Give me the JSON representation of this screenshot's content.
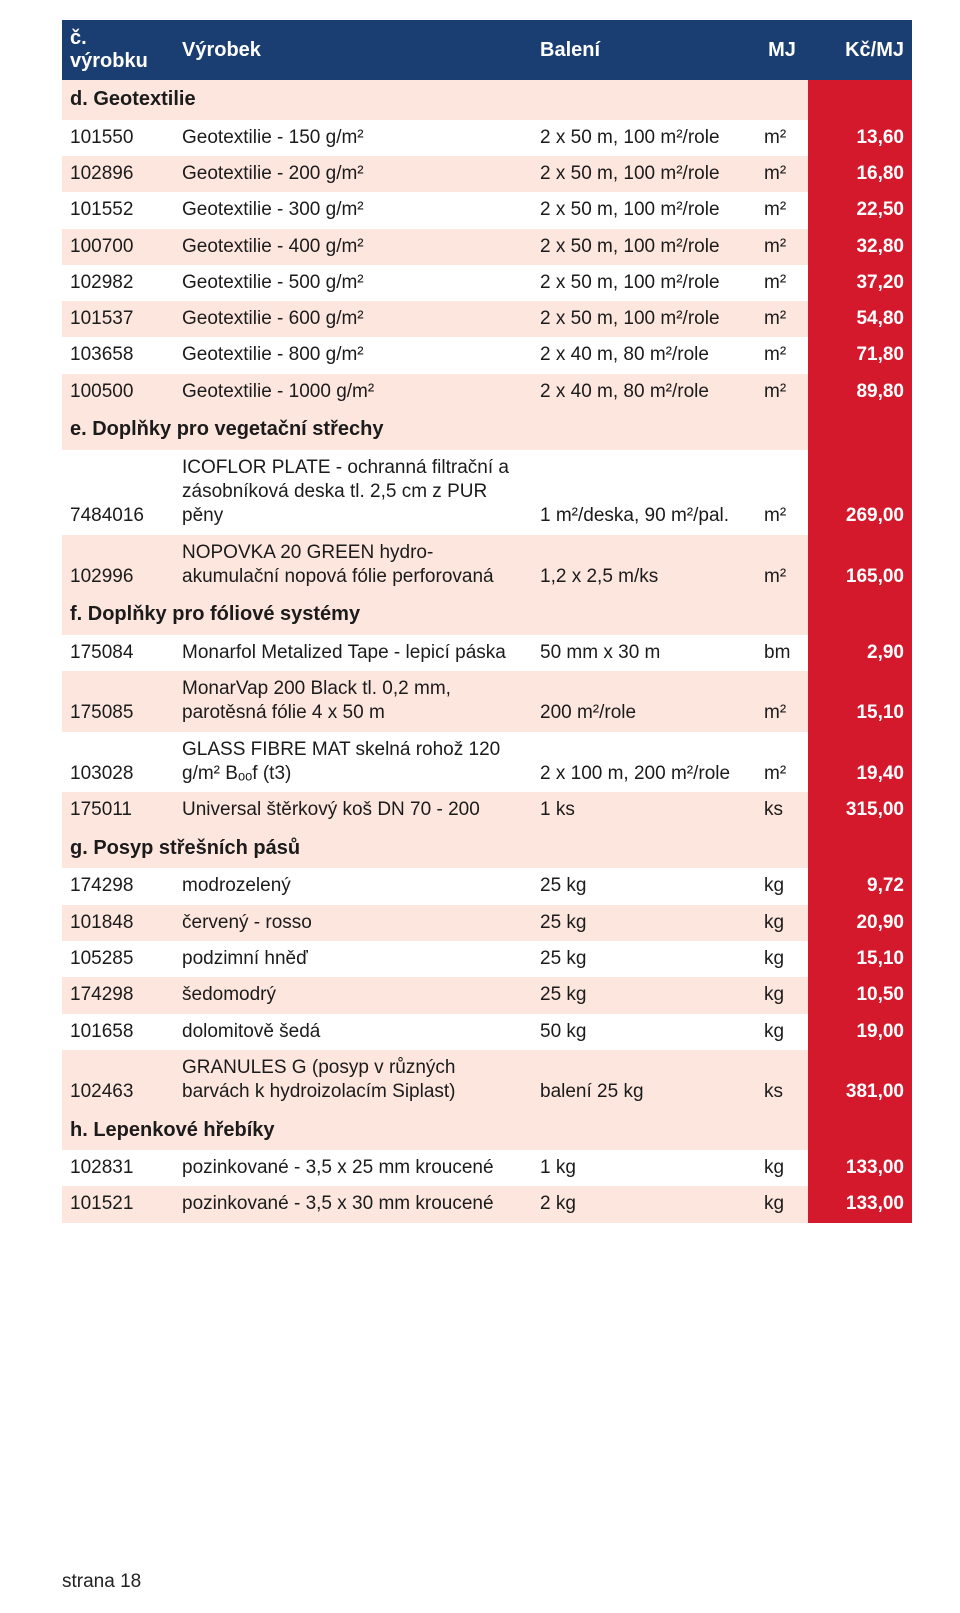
{
  "header": {
    "code": "č. výrobku",
    "product": "Výrobek",
    "package": "Balení",
    "mj": "MJ",
    "price": "Kč/MJ"
  },
  "sections": [
    {
      "title": "d. Geotextilie",
      "rows": [
        {
          "code": "101550",
          "desc": "Geotextilie - 150 g/m²",
          "pack": "2 x 50 m, 100 m²/role",
          "mj": "m²",
          "price": "13,60"
        },
        {
          "code": "102896",
          "desc": "Geotextilie - 200 g/m²",
          "pack": "2 x 50 m, 100 m²/role",
          "mj": "m²",
          "price": "16,80"
        },
        {
          "code": "101552",
          "desc": "Geotextilie - 300 g/m²",
          "pack": "2 x 50 m, 100 m²/role",
          "mj": "m²",
          "price": "22,50"
        },
        {
          "code": "100700",
          "desc": "Geotextilie - 400 g/m²",
          "pack": "2 x 50 m, 100 m²/role",
          "mj": "m²",
          "price": "32,80"
        },
        {
          "code": "102982",
          "desc": "Geotextilie - 500 g/m²",
          "pack": "2 x 50 m, 100 m²/role",
          "mj": "m²",
          "price": "37,20"
        },
        {
          "code": "101537",
          "desc": "Geotextilie - 600 g/m²",
          "pack": "2 x 50 m, 100 m²/role",
          "mj": "m²",
          "price": "54,80"
        },
        {
          "code": "103658",
          "desc": "Geotextilie - 800 g/m²",
          "pack": "2 x 40 m, 80 m²/role",
          "mj": "m²",
          "price": "71,80"
        },
        {
          "code": "100500",
          "desc": "Geotextilie - 1000 g/m²",
          "pack": "2 x 40 m, 80 m²/role",
          "mj": "m²",
          "price": "89,80"
        }
      ]
    },
    {
      "title": "e. Doplňky pro vegetační střechy",
      "rows": [
        {
          "code": "7484016",
          "desc": "ICOFLOR PLATE - ochranná filtrační a zásobníková deska tl. 2,5 cm z PUR pěny",
          "pack": "1 m²/deska, 90 m²/pal.",
          "mj": "m²",
          "price": "269,00"
        },
        {
          "code": "102996",
          "desc": "NOPOVKA 20 GREEN hydro-akumulační nopová fólie perforovaná",
          "pack": "1,2 x 2,5 m/ks",
          "mj": "m²",
          "price": "165,00"
        }
      ]
    },
    {
      "title": "f. Doplňky pro fóliové systémy",
      "rows": [
        {
          "code": "175084",
          "desc": "Monarfol Metalized Tape - lepicí páska",
          "pack": "50 mm x 30 m",
          "mj": "bm",
          "price": "2,90"
        },
        {
          "code": "175085",
          "desc": "MonarVap 200 Black tl. 0,2 mm, parotěsná fólie 4 x 50 m",
          "pack": "200 m²/role",
          "mj": "m²",
          "price": "15,10"
        },
        {
          "code": "103028",
          "desc": "GLASS FIBRE MAT skelná rohož 120 g/m² Bₒₒf (t3)",
          "pack": "2 x 100 m, 200 m²/role",
          "mj": "m²",
          "price": "19,40"
        },
        {
          "code": "175011",
          "desc": "Universal štěrkový koš DN 70 - 200",
          "pack": "1 ks",
          "mj": "ks",
          "price": "315,00"
        }
      ]
    },
    {
      "title": "g. Posyp střešních pásů",
      "rows": [
        {
          "code": "174298",
          "desc": "modrozelený",
          "pack": "25 kg",
          "mj": "kg",
          "price": "9,72"
        },
        {
          "code": "101848",
          "desc": "červený - rosso",
          "pack": "25 kg",
          "mj": "kg",
          "price": "20,90"
        },
        {
          "code": "105285",
          "desc": "podzimní hněď",
          "pack": "25 kg",
          "mj": "kg",
          "price": "15,10"
        },
        {
          "code": "174298",
          "desc": "šedomodrý",
          "pack": "25 kg",
          "mj": "kg",
          "price": "10,50"
        },
        {
          "code": "101658",
          "desc": "dolomitově šedá",
          "pack": "50 kg",
          "mj": "kg",
          "price": "19,00"
        },
        {
          "code": "102463",
          "desc": "GRANULES G (posyp v různých barvách k hydroizolacím Siplast)",
          "pack": "balení 25 kg",
          "mj": "ks",
          "price": "381,00"
        }
      ]
    },
    {
      "title": "h. Lepenkové hřebíky",
      "rows": [
        {
          "code": "102831",
          "desc": "pozinkované - 3,5 x 25 mm kroucené",
          "pack": "1 kg",
          "mj": "kg",
          "price": "133,00"
        },
        {
          "code": "101521",
          "desc": "pozinkované - 3,5 x 30 mm kroucené",
          "pack": "2 kg",
          "mj": "kg",
          "price": "133,00"
        }
      ]
    }
  ],
  "footer": "strana 18"
}
